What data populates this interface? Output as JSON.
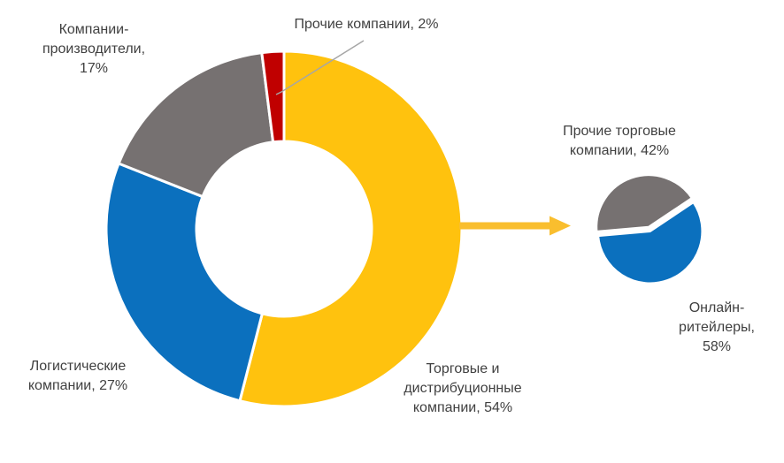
{
  "palette": {
    "yellow": "#FFC20E",
    "blue": "#0B70BE",
    "gray": "#767171",
    "red": "#C00000",
    "arrow": "#F9BE2E",
    "leader_line": "#A6A6A6",
    "text": "#404040",
    "background": "#FFFFFF"
  },
  "chart_data": [
    {
      "type": "pie",
      "subtype": "donut",
      "title": "",
      "unit": "%",
      "direction": "clockwise",
      "start_angle_deg": 0,
      "legend_position": "none",
      "slices": [
        {
          "name": "Торговые и дистрибуционные компании",
          "value": 54,
          "color": "#FFC20E"
        },
        {
          "name": "Логистические компании",
          "value": 27,
          "color": "#0B70BE"
        },
        {
          "name": "Компании-производители",
          "value": 17,
          "color": "#767171"
        },
        {
          "name": "Прочие компании",
          "value": 2,
          "color": "#C00000"
        }
      ],
      "labels": {
        "trading": "Торговые и\nдистрибуционные\nкомпании, 54%",
        "logistics": "Логистические\nкомпании, 27%",
        "producers": "Компании-\nпроизводители,\n17%",
        "other": "Прочие компании, 2%"
      }
    },
    {
      "type": "pie",
      "subtype": "pie",
      "title": "",
      "unit": "%",
      "direction": "clockwise",
      "start_angle_deg": 265,
      "legend_position": "none",
      "slices": [
        {
          "name": "Прочие торговые компании",
          "value": 42,
          "color": "#767171"
        },
        {
          "name": "Онлайн-ритейлеры",
          "value": 58,
          "color": "#0B70BE",
          "exploded": true
        }
      ],
      "labels": {
        "other_trading": "Прочие торговые\nкомпании, 42%",
        "online": "Онлайн-\nритейлеры,\n58%"
      }
    }
  ]
}
